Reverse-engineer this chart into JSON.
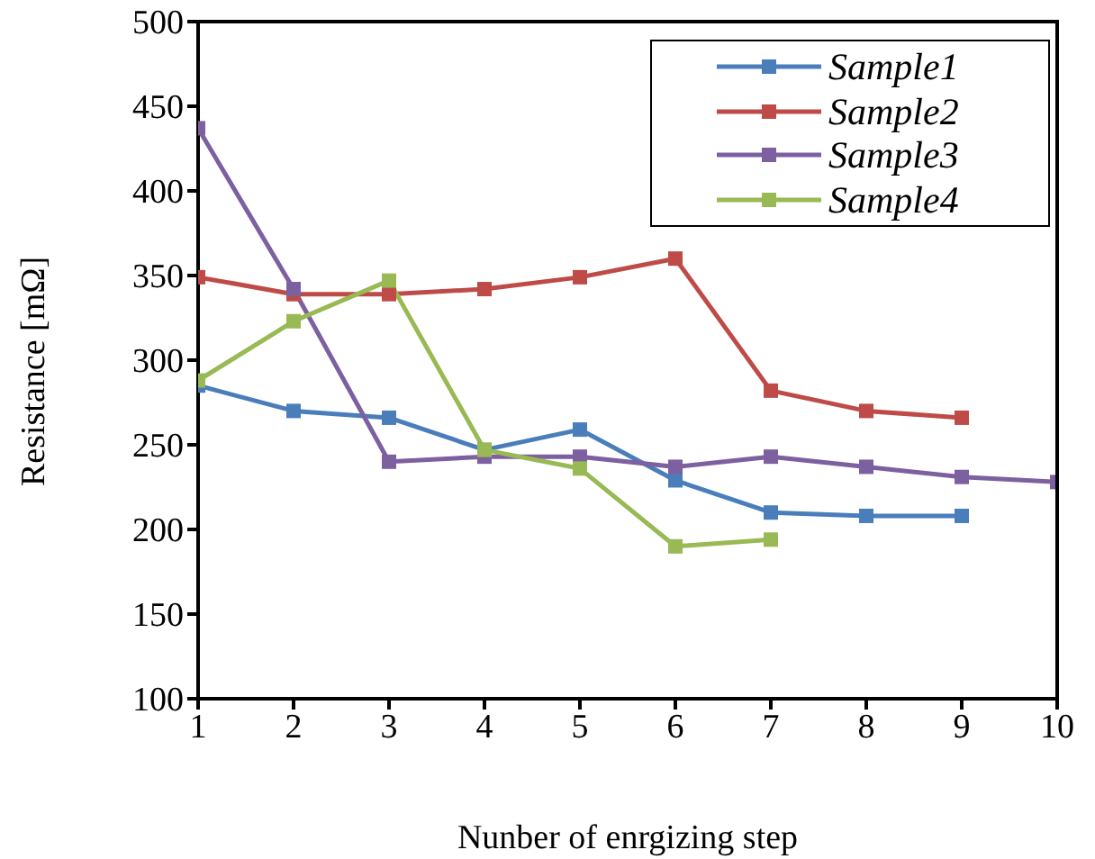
{
  "chart_data": {
    "type": "line",
    "xlabel": "Nunber of enrgizing step",
    "ylabel": "Resistance [mΩ]",
    "x": [
      1,
      2,
      3,
      4,
      5,
      6,
      7,
      8,
      9,
      10
    ],
    "series": [
      {
        "name": "Sample1",
        "color": "#4a7ebb",
        "values": [
          285,
          270,
          266,
          247,
          259,
          229,
          210,
          208,
          208,
          null
        ]
      },
      {
        "name": "Sample2",
        "color": "#be4b48",
        "values": [
          349,
          339,
          339,
          342,
          349,
          360,
          282,
          270,
          266,
          null
        ]
      },
      {
        "name": "Sample3",
        "color": "#7d60a0",
        "values": [
          437,
          342,
          240,
          243,
          243,
          237,
          243,
          237,
          231,
          228
        ]
      },
      {
        "name": "Sample4",
        "color": "#98b954",
        "values": [
          288,
          323,
          347,
          247,
          236,
          190,
          194,
          null,
          null,
          null
        ]
      }
    ],
    "xlim": [
      1,
      10
    ],
    "xticks": [
      1,
      2,
      3,
      4,
      5,
      6,
      7,
      8,
      9,
      10
    ],
    "ylim": [
      100,
      500
    ],
    "yticks": [
      100,
      150,
      200,
      250,
      300,
      350,
      400,
      450,
      500
    ],
    "grid": false,
    "legend": "top right",
    "marker": "square",
    "line_style": "solid"
  }
}
